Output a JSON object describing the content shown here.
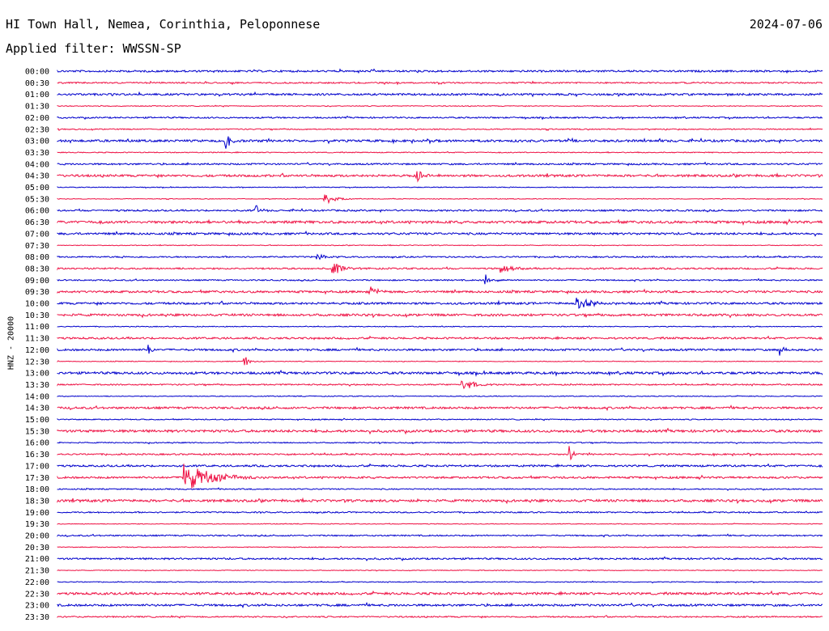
{
  "header": {
    "station": "HI Town Hall, Nemea, Corinthia, Peloponnese",
    "date": "2024-07-06",
    "filter": "Applied filter: WWSSN-SP"
  },
  "chart_data": {
    "type": "line",
    "title": "HI Town Hall, Nemea, Corinthia, Peloponnese",
    "subtitle": "Applied filter: WWSSN-SP",
    "ylabel": "HNZ - 20000",
    "xlabel": "",
    "grid": false,
    "colors": [
      "#0000cc",
      "#ee1144"
    ],
    "row_labels": [
      "00:00",
      "00:30",
      "01:00",
      "01:30",
      "02:00",
      "02:30",
      "03:00",
      "03:30",
      "04:00",
      "04:30",
      "05:00",
      "05:30",
      "06:00",
      "06:30",
      "07:00",
      "07:30",
      "08:00",
      "08:30",
      "09:00",
      "09:30",
      "10:00",
      "10:30",
      "11:00",
      "11:30",
      "12:00",
      "12:30",
      "13:00",
      "13:30",
      "14:00",
      "14:30",
      "15:00",
      "15:30",
      "16:00",
      "16:30",
      "17:00",
      "17:30",
      "18:00",
      "18:30",
      "19:00",
      "19:30",
      "20:00",
      "20:30",
      "21:00",
      "21:30",
      "22:00",
      "22:30",
      "23:00",
      "23:30"
    ],
    "events": [
      {
        "row": 6,
        "pos": 0.22,
        "amp": 12,
        "width": 0.005
      },
      {
        "row": 9,
        "pos": 0.47,
        "amp": 7,
        "width": 0.01
      },
      {
        "row": 11,
        "pos": 0.35,
        "amp": 7,
        "width": 0.015
      },
      {
        "row": 12,
        "pos": 0.26,
        "amp": 7,
        "width": 0.006
      },
      {
        "row": 16,
        "pos": 0.34,
        "amp": 6,
        "width": 0.01
      },
      {
        "row": 17,
        "pos": 0.36,
        "amp": 7,
        "width": 0.015
      },
      {
        "row": 17,
        "pos": 0.58,
        "amp": 7,
        "width": 0.012
      },
      {
        "row": 18,
        "pos": 0.56,
        "amp": 7,
        "width": 0.01
      },
      {
        "row": 19,
        "pos": 0.41,
        "amp": 7,
        "width": 0.008
      },
      {
        "row": 20,
        "pos": 0.68,
        "amp": 7,
        "width": 0.02
      },
      {
        "row": 24,
        "pos": 0.12,
        "amp": 7,
        "width": 0.005
      },
      {
        "row": 24,
        "pos": 0.945,
        "amp": 9,
        "width": 0.004
      },
      {
        "row": 25,
        "pos": 0.245,
        "amp": 7,
        "width": 0.006
      },
      {
        "row": 27,
        "pos": 0.53,
        "amp": 7,
        "width": 0.015
      },
      {
        "row": 33,
        "pos": 0.67,
        "amp": 11,
        "width": 0.005
      },
      {
        "row": 35,
        "pos": 0.165,
        "amp": 18,
        "width": 0.035
      }
    ]
  }
}
